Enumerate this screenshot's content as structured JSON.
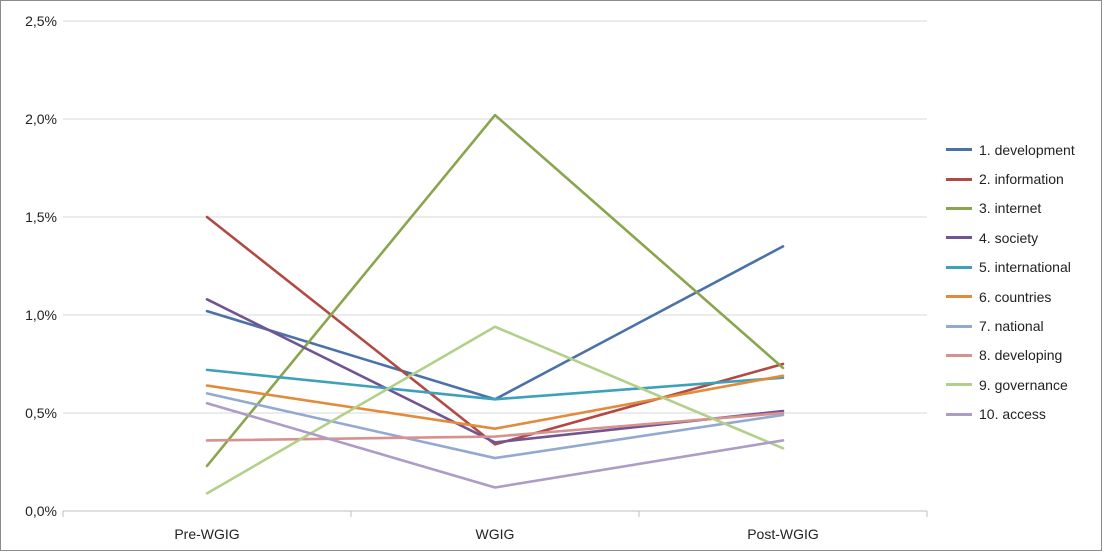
{
  "chart_data": {
    "type": "line",
    "categories": [
      "Pre-WGIG",
      "WGIG",
      "Post-WGIG"
    ],
    "y_ticks": [
      "0,0%",
      "0,5%",
      "1,0%",
      "1,5%",
      "2,0%",
      "2,5%"
    ],
    "ylim": [
      0,
      2.5
    ],
    "y_unit": "%",
    "grid": "horizontal",
    "legend_position": "right",
    "series": [
      {
        "name": "1. development",
        "color": "#4A72A8",
        "values": [
          1.02,
          0.57,
          1.35
        ]
      },
      {
        "name": "2. information",
        "color": "#B14A45",
        "values": [
          1.5,
          0.34,
          0.75
        ]
      },
      {
        "name": "3. internet",
        "color": "#8BA54E",
        "values": [
          0.23,
          2.02,
          0.73
        ]
      },
      {
        "name": "4. society",
        "color": "#705592",
        "values": [
          1.08,
          0.35,
          0.51
        ]
      },
      {
        "name": "5. international",
        "color": "#3FA1B9",
        "values": [
          0.72,
          0.57,
          0.68
        ]
      },
      {
        "name": "6. countries",
        "color": "#E38B3C",
        "values": [
          0.64,
          0.42,
          0.69
        ]
      },
      {
        "name": "7. national",
        "color": "#93A9D2",
        "values": [
          0.6,
          0.27,
          0.49
        ]
      },
      {
        "name": "8. developing",
        "color": "#D6928F",
        "values": [
          0.36,
          0.38,
          0.5
        ]
      },
      {
        "name": "9. governance",
        "color": "#B3D08A",
        "values": [
          0.09,
          0.94,
          0.32
        ]
      },
      {
        "name": "10. access",
        "color": "#AE9CC6",
        "values": [
          0.55,
          0.12,
          0.36
        ]
      }
    ]
  }
}
